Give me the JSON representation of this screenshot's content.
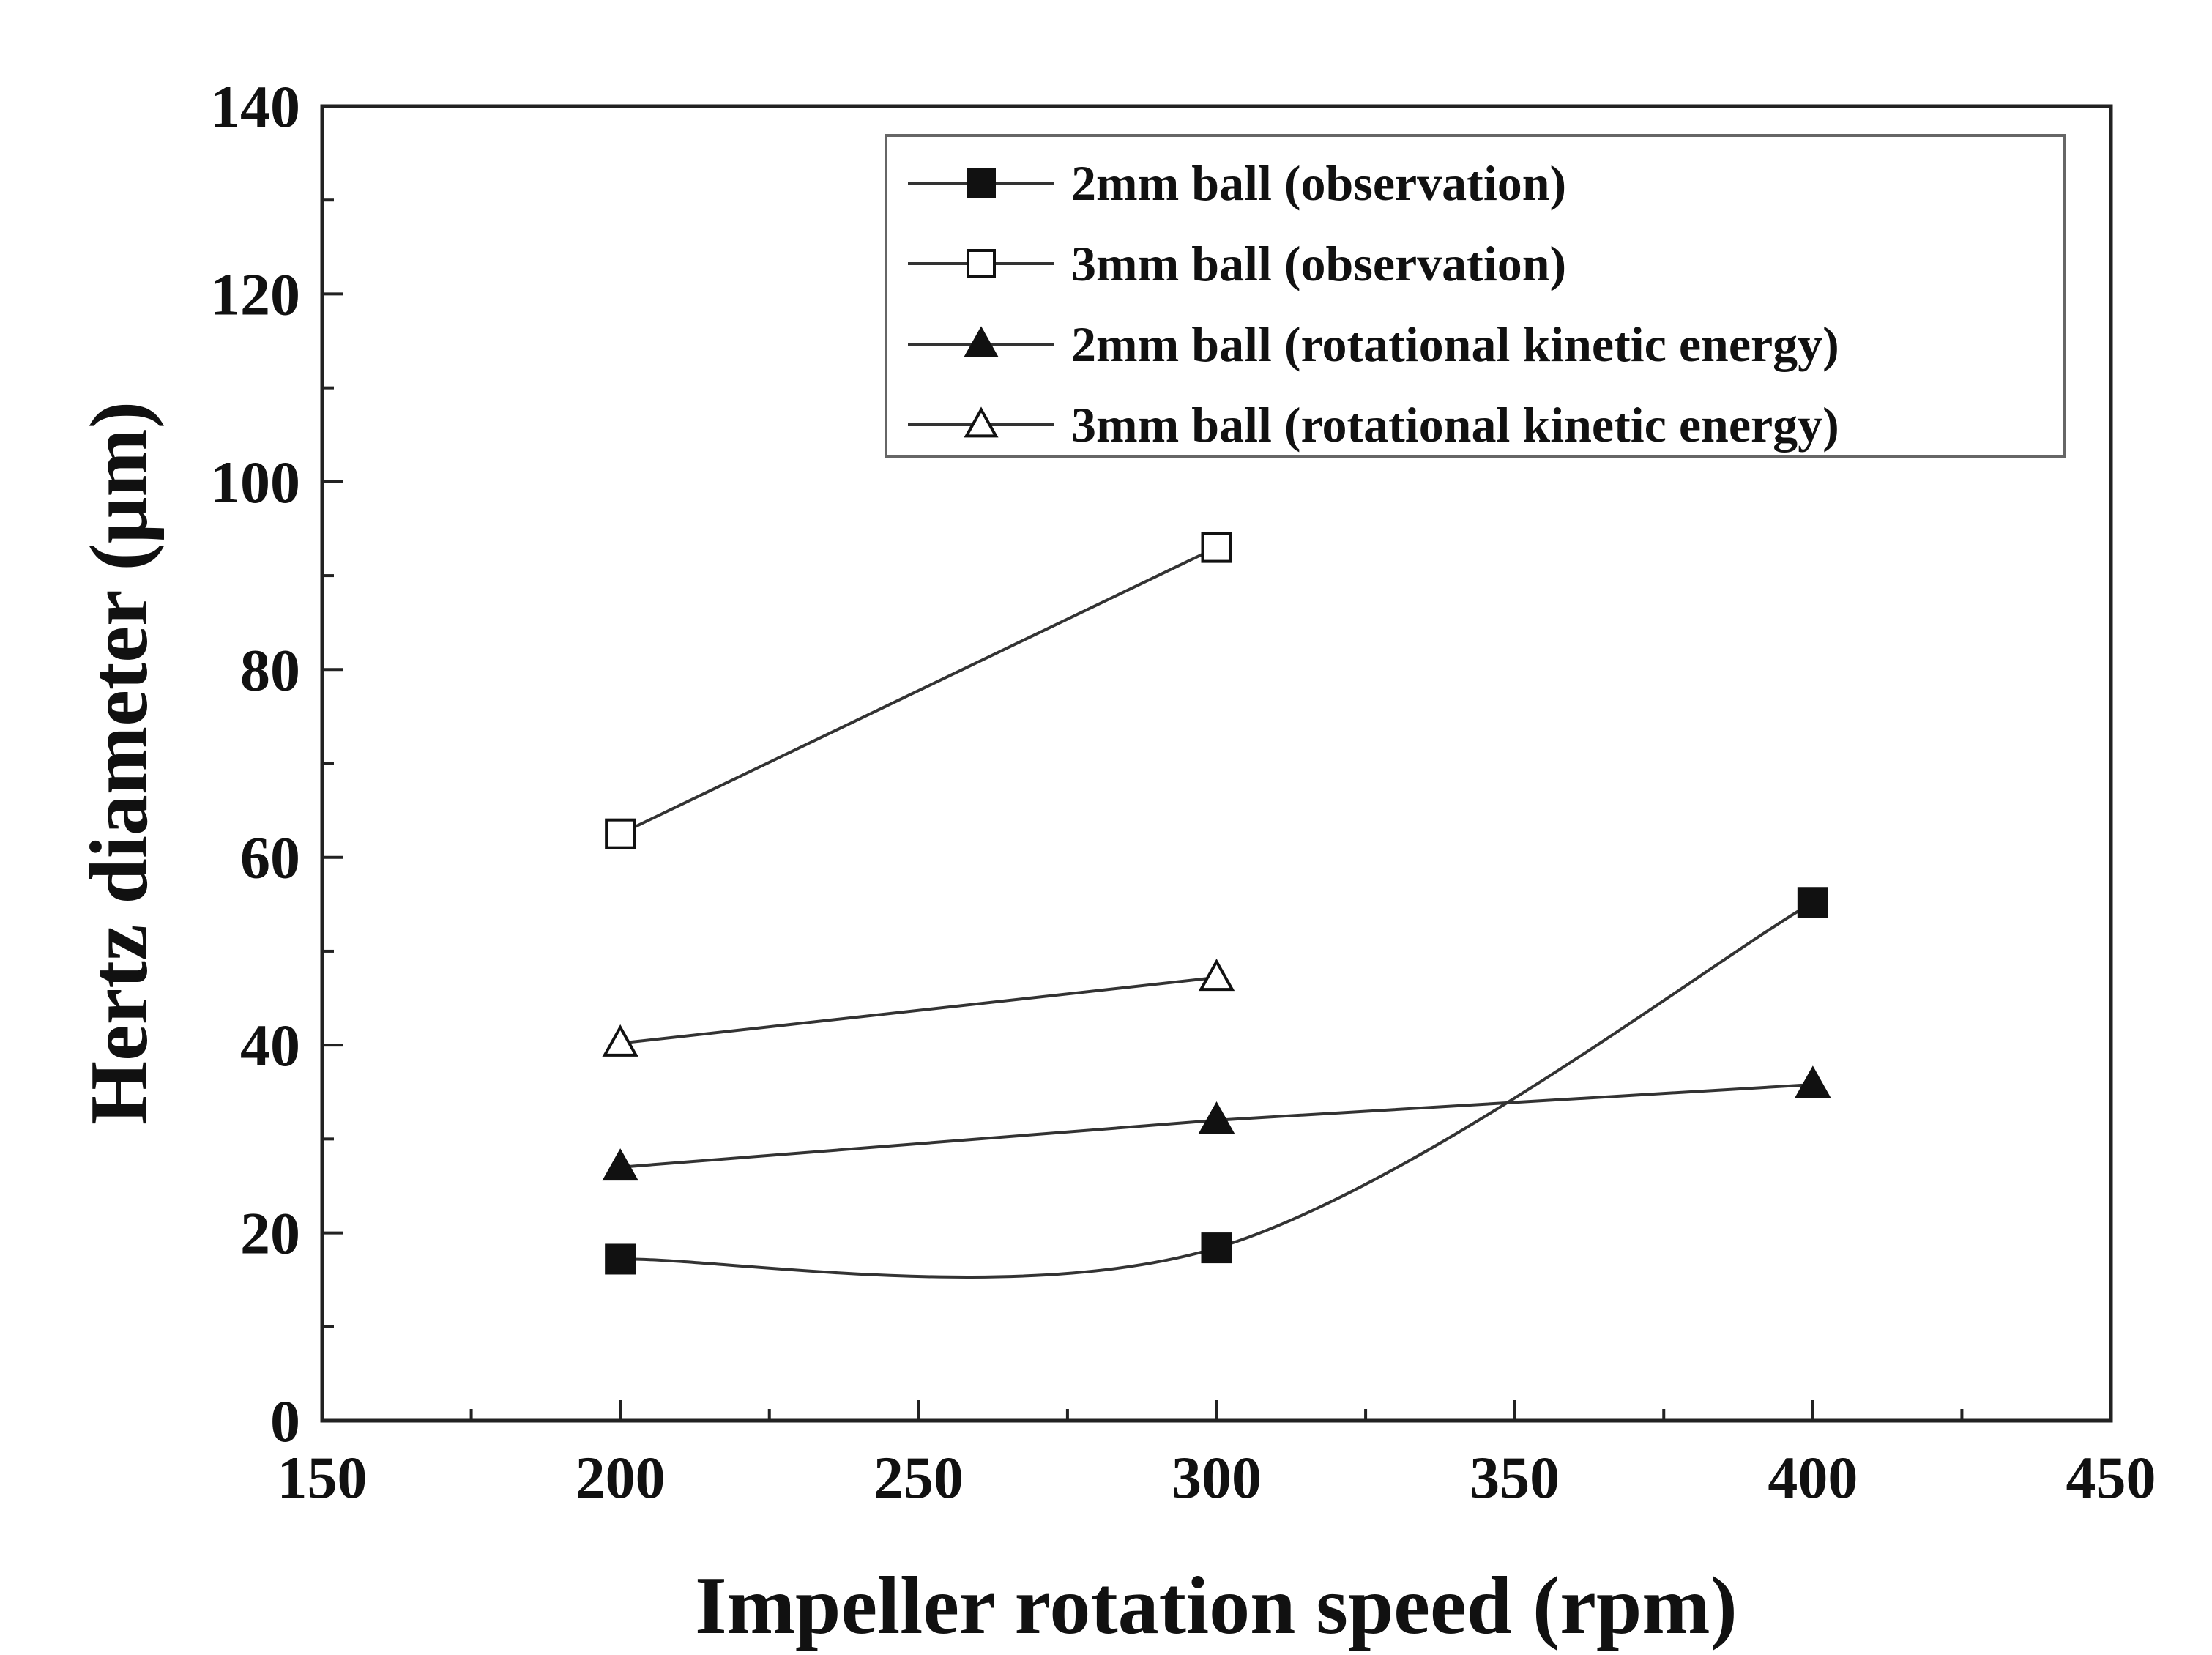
{
  "chart_data": {
    "type": "line",
    "title": "",
    "xlabel": "Impeller rotation speed (rpm)",
    "ylabel": "Hertz diameter (μm)",
    "xlim": [
      150,
      450
    ],
    "ylim": [
      0,
      140
    ],
    "x_ticks": [
      150,
      200,
      250,
      300,
      350,
      400,
      450
    ],
    "y_ticks": [
      0,
      20,
      40,
      60,
      80,
      100,
      120,
      140
    ],
    "grid": false,
    "legend_position": "top-right",
    "series": [
      {
        "name": "2mm ball (observation)",
        "marker": "filled-square",
        "curve": "smooth",
        "x": [
          200,
          300,
          400
        ],
        "y": [
          17.2,
          18.4,
          55.2
        ]
      },
      {
        "name": "3mm ball (observation)",
        "marker": "open-square",
        "curve": "straight",
        "x": [
          200,
          300
        ],
        "y": [
          62.5,
          93
        ]
      },
      {
        "name": "2mm ball (rotational kinetic energy)",
        "marker": "filled-triangle",
        "curve": "straight",
        "x": [
          200,
          300,
          400
        ],
        "y": [
          27,
          32,
          35.8
        ]
      },
      {
        "name": "3mm ball (rotational kinetic energy)",
        "marker": "open-triangle",
        "curve": "straight",
        "x": [
          200,
          300
        ],
        "y": [
          40.2,
          47.2
        ]
      }
    ],
    "colors": {
      "line": "#333333",
      "marker": "#111111",
      "axis": "#222222",
      "background": "#ffffff"
    }
  }
}
